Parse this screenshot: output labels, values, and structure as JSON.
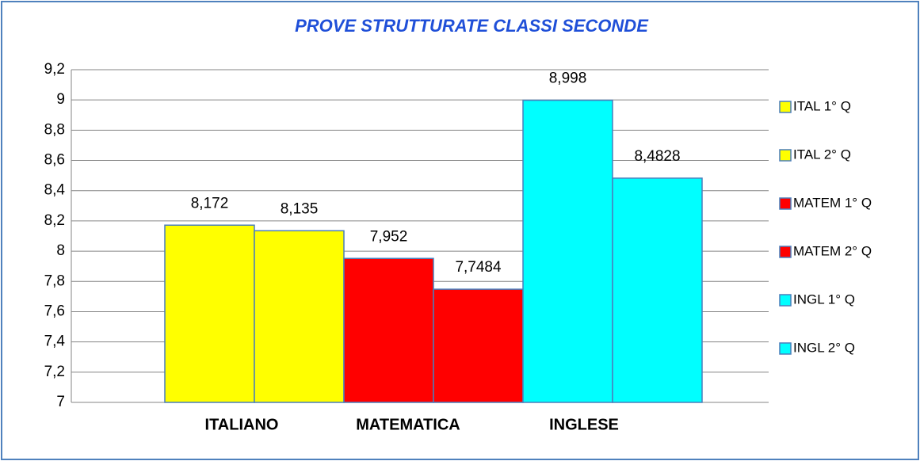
{
  "chart_data": {
    "type": "bar",
    "title": "PROVE STRUTTURATE CLASSI SECONDE",
    "categories": [
      "ITALIANO",
      "MATEMATICA",
      "INGLESE"
    ],
    "series": [
      {
        "name": "ITAL 1° Q",
        "color": "#ffff00",
        "values": [
          8.172,
          null,
          null
        ],
        "value_labels": [
          "8,172",
          null,
          null
        ]
      },
      {
        "name": "ITAL 2° Q",
        "color": "#ffff00",
        "values": [
          8.135,
          null,
          null
        ],
        "value_labels": [
          "8,135",
          null,
          null
        ]
      },
      {
        "name": "MATEM 1° Q",
        "color": "#ff0000",
        "values": [
          null,
          7.952,
          null
        ],
        "value_labels": [
          null,
          "7,952",
          null
        ]
      },
      {
        "name": "MATEM 2° Q",
        "color": "#ff0000",
        "values": [
          null,
          7.7484,
          null
        ],
        "value_labels": [
          null,
          "7,7484",
          null
        ]
      },
      {
        "name": "INGL 1° Q",
        "color": "#00ffff",
        "values": [
          null,
          null,
          8.998
        ],
        "value_labels": [
          null,
          null,
          "8,998"
        ]
      },
      {
        "name": "INGL 2° Q",
        "color": "#00ffff",
        "values": [
          null,
          null,
          8.4828
        ],
        "value_labels": [
          null,
          null,
          "8,4828"
        ]
      }
    ],
    "ylim": [
      7,
      9.2
    ],
    "yticks": [
      7,
      {
        "value": 7.2,
        "label": "7,2"
      },
      {
        "value": 7.4,
        "label": "7,4"
      },
      {
        "value": 7.6,
        "label": "7,6"
      },
      {
        "value": 7.8,
        "label": "7,8"
      },
      8,
      {
        "value": 8.2,
        "label": "8,2"
      },
      {
        "value": 8.4,
        "label": "8,4"
      },
      {
        "value": 8.6,
        "label": "8,6"
      },
      {
        "value": 8.8,
        "label": "8,8"
      },
      9,
      {
        "value": 9.2,
        "label": "9,2"
      }
    ],
    "grid": true,
    "legend": "right"
  }
}
